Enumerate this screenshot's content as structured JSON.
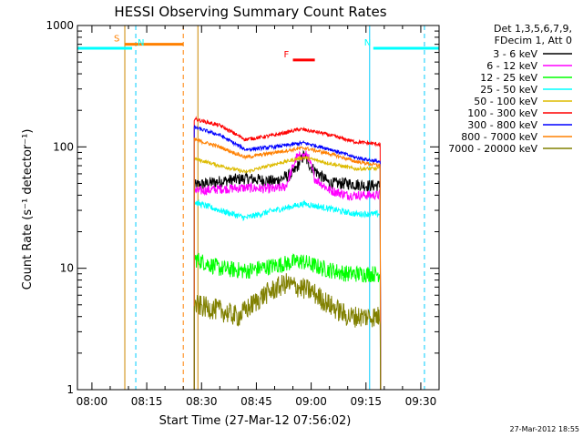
{
  "chart_data": {
    "type": "line",
    "title": "HESSI Observing Summary Count Rates",
    "xlabel": "Start Time (27-Mar-12 07:56:02)",
    "ylabel": "Count Rate (s⁻¹ detector⁻¹)",
    "x_ticks": [
      "08:00",
      "08:15",
      "08:30",
      "08:45",
      "09:00",
      "09:15",
      "09:30"
    ],
    "y_ticks": [
      "1",
      "10",
      "100",
      "1000"
    ],
    "xlim": [
      "07:56:02",
      "09:35:00"
    ],
    "ylim": [
      1,
      1000
    ],
    "yscale": "log",
    "legend_header": [
      "Det 1,3,5,6,7,9,",
      "FDecim 1, Att 0"
    ],
    "legend_position": "right",
    "footer_date": "27-Mar-2012 18:55",
    "data_start": "08:28",
    "data_end": "09:19",
    "series": [
      {
        "name": "3 - 6 keV",
        "color": "#000000",
        "noise": 0.05,
        "points": [
          [
            "08:28",
            48
          ],
          [
            "08:35",
            52
          ],
          [
            "08:42",
            55
          ],
          [
            "08:50",
            52
          ],
          [
            "08:55",
            60
          ],
          [
            "08:58",
            85
          ],
          [
            "09:00",
            68
          ],
          [
            "09:05",
            50
          ],
          [
            "09:10",
            50
          ],
          [
            "09:15",
            48
          ]
        ]
      },
      {
        "name": "6 - 12 keV",
        "color": "#ff00ff",
        "noise": 0.04,
        "points": [
          [
            "08:28",
            43
          ],
          [
            "08:35",
            45
          ],
          [
            "08:42",
            46
          ],
          [
            "08:50",
            45
          ],
          [
            "08:53",
            47
          ],
          [
            "08:56",
            82
          ],
          [
            "08:59",
            86
          ],
          [
            "09:01",
            55
          ],
          [
            "09:05",
            44
          ],
          [
            "09:10",
            40
          ],
          [
            "09:17",
            40
          ]
        ]
      },
      {
        "name": "12 - 25 keV",
        "color": "#00ff00",
        "noise": 0.07,
        "points": [
          [
            "08:28",
            12
          ],
          [
            "08:35",
            10
          ],
          [
            "08:42",
            9.5
          ],
          [
            "08:50",
            10.5
          ],
          [
            "08:57",
            11.5
          ],
          [
            "09:03",
            10
          ],
          [
            "09:10",
            9
          ],
          [
            "09:19",
            9
          ]
        ]
      },
      {
        "name": "25 - 50 keV",
        "color": "#00ffff",
        "noise": 0.025,
        "points": [
          [
            "08:28",
            35
          ],
          [
            "08:35",
            30
          ],
          [
            "08:42",
            26
          ],
          [
            "08:50",
            30
          ],
          [
            "08:58",
            34
          ],
          [
            "09:05",
            31
          ],
          [
            "09:12",
            28
          ],
          [
            "09:19",
            28
          ]
        ]
      },
      {
        "name": "50 - 100 keV",
        "color": "#ddbb00",
        "noise": 0.015,
        "points": [
          [
            "08:28",
            80
          ],
          [
            "08:35",
            70
          ],
          [
            "08:42",
            62
          ],
          [
            "08:50",
            72
          ],
          [
            "08:58",
            82
          ],
          [
            "09:05",
            73
          ],
          [
            "09:12",
            66
          ],
          [
            "09:19",
            66
          ]
        ]
      },
      {
        "name": "100 - 300 keV",
        "color": "#ff0000",
        "noise": 0.015,
        "points": [
          [
            "08:28",
            170
          ],
          [
            "08:35",
            150
          ],
          [
            "08:42",
            115
          ],
          [
            "08:50",
            125
          ],
          [
            "08:57",
            140
          ],
          [
            "09:03",
            130
          ],
          [
            "09:12",
            110
          ],
          [
            "09:19",
            105
          ]
        ]
      },
      {
        "name": "300 - 800 keV",
        "color": "#0000ff",
        "noise": 0.015,
        "points": [
          [
            "08:28",
            145
          ],
          [
            "08:35",
            125
          ],
          [
            "08:42",
            95
          ],
          [
            "08:50",
            100
          ],
          [
            "08:58",
            108
          ],
          [
            "09:05",
            96
          ],
          [
            "09:12",
            82
          ],
          [
            "09:19",
            75
          ]
        ]
      },
      {
        "name": "800 - 7000 keV",
        "color": "#ff8000",
        "noise": 0.015,
        "points": [
          [
            "08:28",
            115
          ],
          [
            "08:35",
            100
          ],
          [
            "08:42",
            82
          ],
          [
            "08:50",
            90
          ],
          [
            "08:58",
            98
          ],
          [
            "09:05",
            88
          ],
          [
            "09:12",
            76
          ],
          [
            "09:19",
            70
          ]
        ]
      },
      {
        "name": "7000 - 20000 keV",
        "color": "#808000",
        "noise": 0.09,
        "points": [
          [
            "08:28",
            5
          ],
          [
            "08:35",
            4.5
          ],
          [
            "08:40",
            4
          ],
          [
            "08:47",
            6
          ],
          [
            "08:53",
            7.5
          ],
          [
            "09:00",
            6.5
          ],
          [
            "09:05",
            5
          ],
          [
            "09:10",
            4
          ],
          [
            "09:17",
            4
          ]
        ]
      }
    ],
    "flags": [
      {
        "label": "S",
        "color": "#ff8000",
        "start": "08:09",
        "end": "08:25",
        "y": 700
      },
      {
        "label": "N",
        "color": "#00ffff",
        "start": "07:56:02",
        "end": "08:11",
        "y": 650
      },
      {
        "label": "N",
        "color": "#00ffff",
        "start": "09:17",
        "end": "09:35",
        "y": 650
      },
      {
        "label": "F",
        "color": "#ff0000",
        "start": "08:55",
        "end": "09:01",
        "y": 520
      }
    ],
    "vlines": [
      {
        "time": "08:09",
        "color": "#cc8800",
        "dash": false
      },
      {
        "time": "08:12",
        "color": "#00ccff",
        "dash": true
      },
      {
        "time": "08:25",
        "color": "#ff8000",
        "dash": true
      },
      {
        "time": "08:29",
        "color": "#cc8800",
        "dash": false
      },
      {
        "time": "09:16",
        "color": "#00ccff",
        "dash": false
      },
      {
        "time": "09:31",
        "color": "#00ccff",
        "dash": true
      }
    ]
  }
}
